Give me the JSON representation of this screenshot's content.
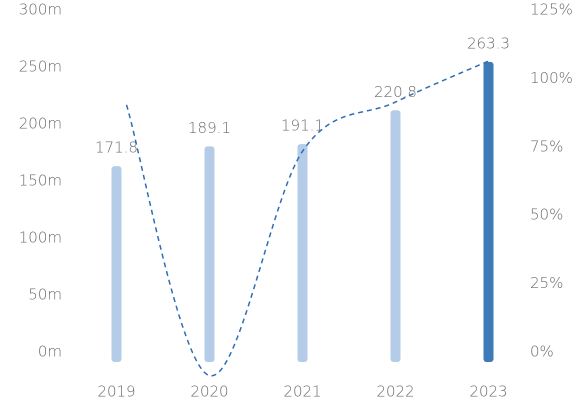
{
  "chart_data": {
    "type": "bar",
    "categories": [
      "2019",
      "2020",
      "2021",
      "2022",
      "2023"
    ],
    "values": [
      171.8,
      189.1,
      191.1,
      220.8,
      263.3
    ],
    "colors": [
      "#b4cce8",
      "#b4cce8",
      "#b4cce8",
      "#b4cce8",
      "#3d7ab8"
    ],
    "ylim": [
      0,
      300
    ],
    "yticks": [
      {
        "value": 0,
        "label": "0m"
      },
      {
        "value": 50,
        "label": "50m"
      },
      {
        "value": 100,
        "label": "100m"
      },
      {
        "value": 150,
        "label": "150m"
      },
      {
        "value": 200,
        "label": "200m"
      },
      {
        "value": 250,
        "label": "250m"
      },
      {
        "value": 300,
        "label": "300m"
      }
    ],
    "y2lim": [
      0,
      125
    ],
    "y2ticks": [
      {
        "value": 0,
        "label": "0%"
      },
      {
        "value": 25,
        "label": "25%"
      },
      {
        "value": 50,
        "label": "50%"
      },
      {
        "value": 75,
        "label": "75%"
      },
      {
        "value": 100,
        "label": "100%"
      },
      {
        "value": 125,
        "label": "125%"
      }
    ],
    "line": {
      "values": [
        94,
        -5,
        77,
        95,
        110
      ],
      "color": "#2e6db4",
      "axis": "y2",
      "dashed": true
    }
  }
}
